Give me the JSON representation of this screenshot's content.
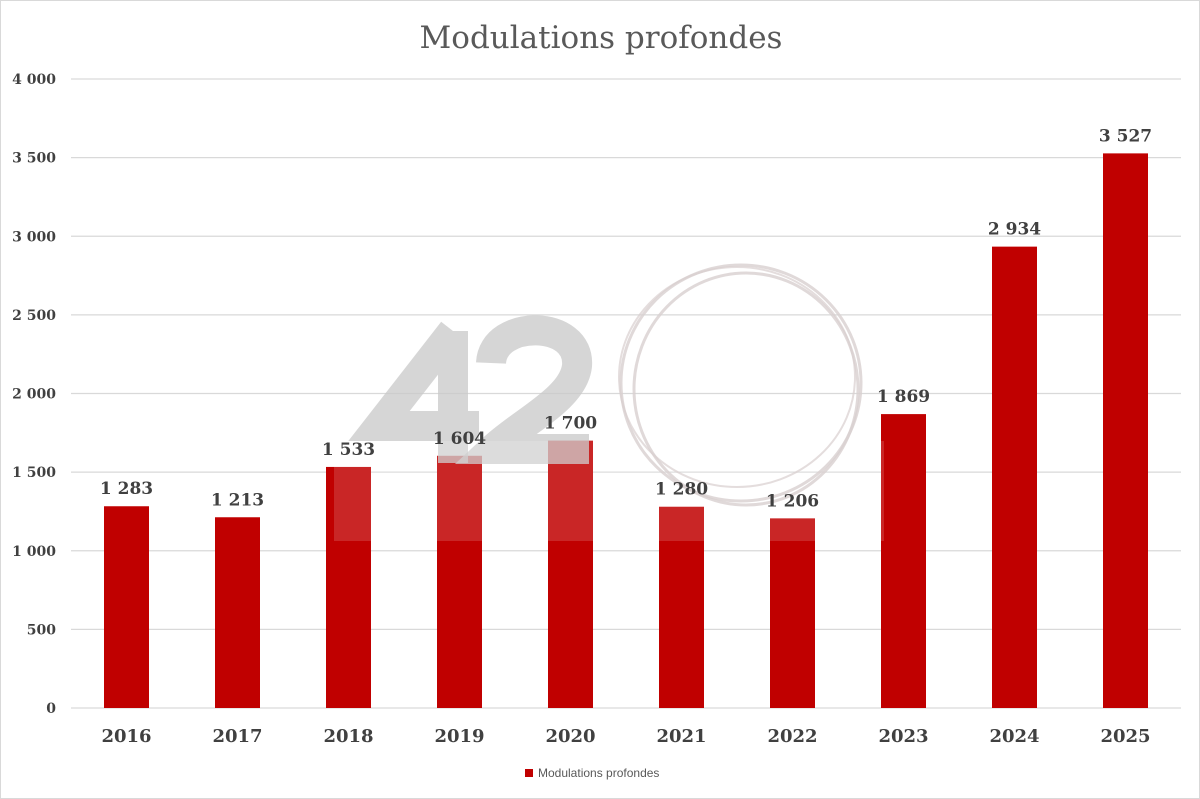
{
  "chart_data": {
    "type": "bar",
    "title": "Modulations profondes",
    "xlabel": "",
    "ylabel": "",
    "categories": [
      "2016",
      "2017",
      "2018",
      "2019",
      "2020",
      "2021",
      "2022",
      "2023",
      "2024",
      "2025"
    ],
    "series": [
      {
        "name": "Modulations profondes",
        "values": [
          1283,
          1213,
          1533,
          1604,
          1700,
          1280,
          1206,
          1869,
          2934,
          3527
        ],
        "color": "#c00000"
      }
    ],
    "data_labels": [
      "1 283",
      "1 213",
      "1 533",
      "1 604",
      "1 700",
      "1 280",
      "1 206",
      "1 869",
      "2 934",
      "3 527"
    ],
    "ylim": [
      0,
      4000
    ],
    "yticks": [
      0,
      500,
      1000,
      1500,
      2000,
      2500,
      3000,
      3500,
      4000
    ],
    "ytick_labels": [
      "0",
      "500",
      "1 000",
      "1 500",
      "2 000",
      "2 500",
      "3 000",
      "3 500",
      "4 000"
    ],
    "grid": true,
    "legend": "bottom"
  },
  "watermark": {
    "text": "42"
  }
}
